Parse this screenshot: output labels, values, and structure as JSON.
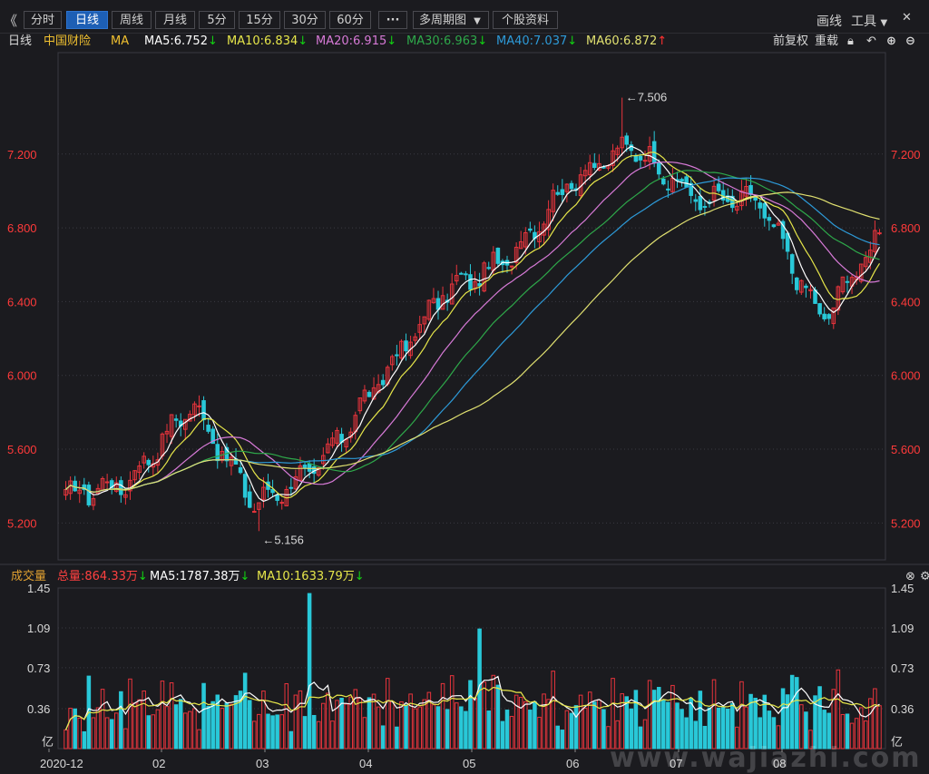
{
  "toolbar": {
    "collapse_icon": "double-chevron-left-icon",
    "tabs": [
      "分时",
      "日线",
      "周线",
      "月线",
      "5分",
      "15分",
      "30分",
      "60分"
    ],
    "active_tab": "日线",
    "more_icon": "more-dots-icon",
    "multi_period": "多周期图",
    "stock_info": "个股资料",
    "draw": "画线",
    "tools": "工具"
  },
  "legend": {
    "period": "日线",
    "stock": "中国财险",
    "ma_label": "MA",
    "ma5": "MA5:6.752",
    "ma10": "MA10:6.834",
    "ma20": "MA20:6.915",
    "ma30": "MA30:6.963",
    "ma40": "MA40:7.037",
    "ma60": "MA60:6.872",
    "adjust": "前复权",
    "reload": "重载"
  },
  "volume_legend": {
    "label": "成交量",
    "total": "总量:864.33万",
    "ma5": "MA5:1787.38万",
    "ma10": "MA10:1633.79万"
  },
  "colors": {
    "up": "#e8343c",
    "down": "#29c8d8",
    "ma5": "#ffffff",
    "ma10": "#e6e64a",
    "ma20": "#d77ad7",
    "ma30": "#2ea84a",
    "ma40": "#2d9ad8",
    "ma60": "#e0e070",
    "price_axis": "#ff3a3a",
    "grid": "#3a3a42"
  },
  "watermark": "www.wajiazhi.com",
  "chart_data": [
    {
      "type": "candlestick",
      "title": "中国财险 日线",
      "ylim": [
        5.0,
        7.75
      ],
      "y_ticks": [
        "7.200",
        "6.800",
        "6.400",
        "6.000",
        "5.600",
        "5.200"
      ],
      "x_ticks": [
        "2020-12",
        "02",
        "03",
        "04",
        "05",
        "06",
        "07",
        "08"
      ],
      "annotations": [
        {
          "text": "←7.506",
          "value": 7.506
        },
        {
          "text": "←5.156",
          "value": 5.156
        }
      ],
      "monthly_path": [
        {
          "month": "2020-12",
          "open": 5.35,
          "high": 5.48,
          "low": 5.22,
          "close": 5.42
        },
        {
          "month": "01a",
          "open": 5.42,
          "high": 5.97,
          "low": 5.38,
          "close": 5.85
        },
        {
          "month": "01b",
          "open": 5.85,
          "high": 5.92,
          "low": 5.156,
          "close": 5.3
        },
        {
          "month": "02",
          "open": 5.3,
          "high": 5.58,
          "low": 5.25,
          "close": 5.5
        },
        {
          "month": "03a",
          "open": 5.5,
          "high": 6.1,
          "low": 5.42,
          "close": 5.98
        },
        {
          "month": "03b",
          "open": 5.98,
          "high": 6.55,
          "low": 5.7,
          "close": 6.45
        },
        {
          "month": "04",
          "open": 6.45,
          "high": 7.22,
          "low": 6.3,
          "close": 6.62
        },
        {
          "month": "04b",
          "open": 6.62,
          "high": 7.1,
          "low": 6.5,
          "close": 7.05
        },
        {
          "month": "05",
          "open": 7.05,
          "high": 7.506,
          "low": 6.95,
          "close": 7.25
        },
        {
          "month": "06",
          "open": 7.25,
          "high": 7.28,
          "low": 6.75,
          "close": 6.95
        },
        {
          "month": "07a",
          "open": 6.95,
          "high": 7.3,
          "low": 6.6,
          "close": 6.95
        },
        {
          "month": "07b",
          "open": 6.95,
          "high": 6.98,
          "low": 6.0,
          "close": 6.3
        },
        {
          "month": "08",
          "open": 6.3,
          "high": 7.08,
          "low": 6.25,
          "close": 6.8
        }
      ]
    },
    {
      "type": "bar",
      "title": "成交量",
      "unit": "亿",
      "ylim": [
        0,
        1.45
      ],
      "y_ticks": [
        "1.45",
        "1.09",
        "0.73",
        "0.36"
      ],
      "series_ma": [
        "MA5",
        "MA10"
      ]
    }
  ]
}
